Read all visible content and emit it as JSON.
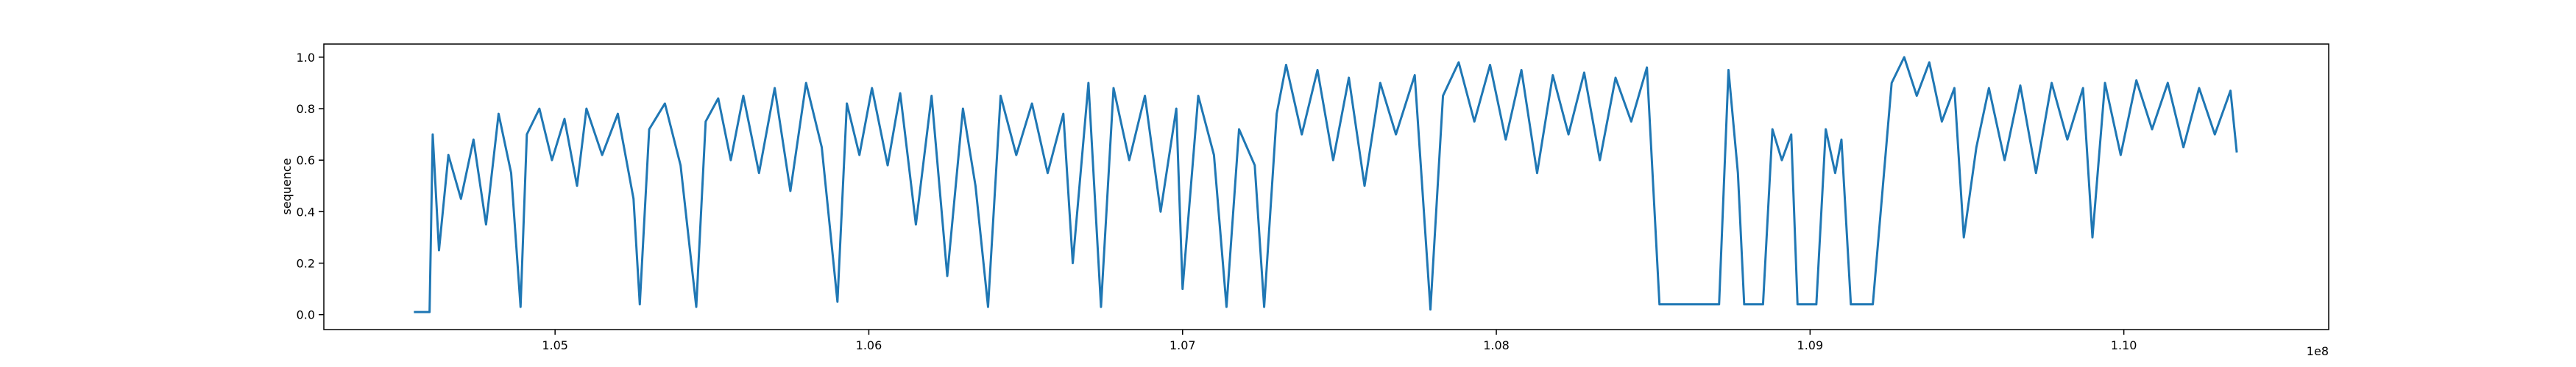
{
  "chart_data": {
    "type": "line",
    "ylabel": "sequence",
    "x_offset_label": "1e8",
    "color": "#1f77b4",
    "xlim": [
      104263000,
      110653000
    ],
    "ylim": [
      -0.058,
      1.051
    ],
    "xticks": [
      {
        "value": 105000000,
        "label": "1.05"
      },
      {
        "value": 106000000,
        "label": "1.06"
      },
      {
        "value": 107000000,
        "label": "1.07"
      },
      {
        "value": 108000000,
        "label": "1.08"
      },
      {
        "value": 109000000,
        "label": "1.09"
      },
      {
        "value": 110000000,
        "label": "1.10"
      }
    ],
    "yticks": [
      {
        "value": 0,
        "label": "0.0"
      },
      0.2,
      0.4,
      0.6,
      0.8,
      {
        "value": 1,
        "label": "1.0"
      }
    ],
    "x": [
      104550000,
      104600000,
      104610000,
      104630000,
      104660000,
      104700000,
      104740000,
      104780000,
      104820000,
      104860000,
      104890000,
      104910000,
      104950000,
      104990000,
      105030000,
      105070000,
      105100000,
      105150000,
      105200000,
      105250000,
      105270000,
      105300000,
      105350000,
      105400000,
      105450000,
      105480000,
      105520000,
      105560000,
      105600000,
      105650000,
      105700000,
      105750000,
      105800000,
      105850000,
      105900000,
      105930000,
      105970000,
      106010000,
      106060000,
      106100000,
      106150000,
      106200000,
      106250000,
      106300000,
      106340000,
      106380000,
      106420000,
      106470000,
      106520000,
      106570000,
      106620000,
      106650000,
      106700000,
      106740000,
      106780000,
      106830000,
      106880000,
      106930000,
      106980000,
      107000000,
      107050000,
      107100000,
      107140000,
      107180000,
      107230000,
      107260000,
      107300000,
      107330000,
      107380000,
      107430000,
      107480000,
      107530000,
      107580000,
      107630000,
      107680000,
      107740000,
      107790000,
      107830000,
      107880000,
      107930000,
      107980000,
      108030000,
      108080000,
      108130000,
      108180000,
      108230000,
      108280000,
      108330000,
      108380000,
      108430000,
      108480000,
      108520000,
      108710000,
      108740000,
      108770000,
      108790000,
      108850000,
      108880000,
      108910000,
      108940000,
      108960000,
      109020000,
      109050000,
      109080000,
      109100000,
      109130000,
      109200000,
      109260000,
      109300000,
      109340000,
      109380000,
      109420000,
      109460000,
      109490000,
      109530000,
      109570000,
      109620000,
      109670000,
      109720000,
      109770000,
      109820000,
      109870000,
      109900000,
      109940000,
      109990000,
      110040000,
      110090000,
      110140000,
      110190000,
      110240000,
      110290000,
      110340000,
      110360000
    ],
    "values": [
      0.01,
      0.01,
      0.7,
      0.25,
      0.62,
      0.45,
      0.68,
      0.35,
      0.78,
      0.55,
      0.03,
      0.7,
      0.8,
      0.6,
      0.76,
      0.5,
      0.8,
      0.62,
      0.78,
      0.45,
      0.04,
      0.72,
      0.82,
      0.58,
      0.03,
      0.75,
      0.84,
      0.6,
      0.85,
      0.55,
      0.88,
      0.48,
      0.9,
      0.65,
      0.05,
      0.82,
      0.62,
      0.88,
      0.58,
      0.86,
      0.35,
      0.85,
      0.15,
      0.8,
      0.5,
      0.03,
      0.85,
      0.62,
      0.82,
      0.55,
      0.78,
      0.2,
      0.9,
      0.03,
      0.88,
      0.6,
      0.85,
      0.4,
      0.8,
      0.1,
      0.85,
      0.62,
      0.03,
      0.72,
      0.58,
      0.03,
      0.78,
      0.97,
      0.7,
      0.95,
      0.6,
      0.92,
      0.5,
      0.9,
      0.7,
      0.93,
      0.02,
      0.85,
      0.98,
      0.75,
      0.97,
      0.68,
      0.95,
      0.55,
      0.93,
      0.7,
      0.94,
      0.6,
      0.92,
      0.75,
      0.96,
      0.04,
      0.04,
      0.95,
      0.55,
      0.04,
      0.04,
      0.72,
      0.6,
      0.7,
      0.04,
      0.04,
      0.72,
      0.55,
      0.68,
      0.04,
      0.04,
      0.9,
      1.0,
      0.85,
      0.98,
      0.75,
      0.88,
      0.3,
      0.65,
      0.88,
      0.6,
      0.89,
      0.55,
      0.9,
      0.68,
      0.88,
      0.3,
      0.9,
      0.62,
      0.91,
      0.72,
      0.9,
      0.65,
      0.88,
      0.7,
      0.87,
      0.63
    ]
  }
}
